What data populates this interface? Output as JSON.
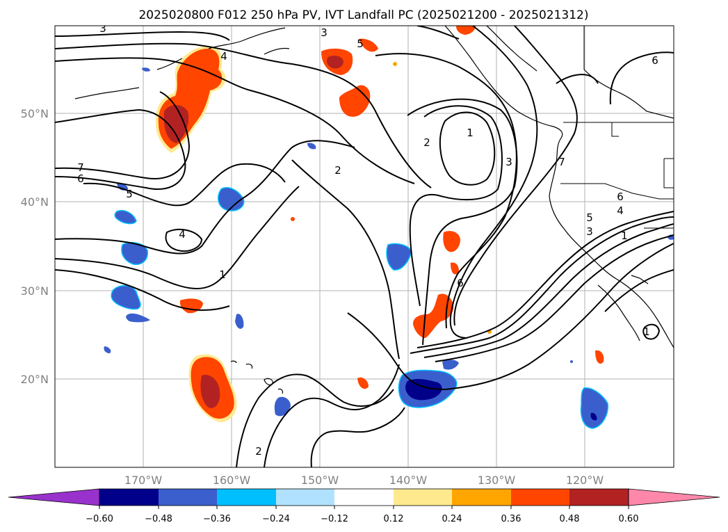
{
  "title": "2025020800 F012 250 hPa PV, IVT Landfall PC (2025021200 - 2025021312)",
  "lat_labels": [
    "50°N",
    "40°N",
    "30°N",
    "20°N"
  ],
  "lon_labels": [
    "170°W",
    "160°W",
    "150°W",
    "140°W",
    "130°W",
    "120°W"
  ],
  "colorbar": {
    "ticks": [
      "−0.60",
      "−0.48",
      "−0.36",
      "−0.24",
      "−0.12",
      "0.12",
      "0.24",
      "0.36",
      "0.48",
      "0.60"
    ],
    "colors": {
      "below": "#9932cc",
      "b1": "#00008b",
      "b2": "#3a5fcd",
      "b3": "#00bfff",
      "b4": "#b0e2ff",
      "neutral": "#ffffff",
      "p1": "#ffe98f",
      "p2": "#ffa500",
      "p3": "#ff4500",
      "p4": "#b22222",
      "above": "#ff88aa"
    }
  },
  "contour_labels": [
    "3",
    "3",
    "4",
    "5",
    "7",
    "6",
    "5",
    "4",
    "2",
    "1",
    "2",
    "1",
    "3",
    "7",
    "6",
    "5",
    "4",
    "3",
    "1",
    "6",
    "6",
    "2",
    "1"
  ],
  "chart_data": {
    "type": "map",
    "fields": "250 hPa PV contours with IVT landfall PC shading",
    "extent": {
      "lon": [
        -180,
        -110
      ],
      "lat": [
        10,
        60
      ]
    },
    "gridlines": true,
    "colorbar_levels": [
      -0.6,
      -0.48,
      -0.36,
      -0.24,
      -0.12,
      0.12,
      0.24,
      0.36,
      0.48,
      0.6
    ]
  }
}
